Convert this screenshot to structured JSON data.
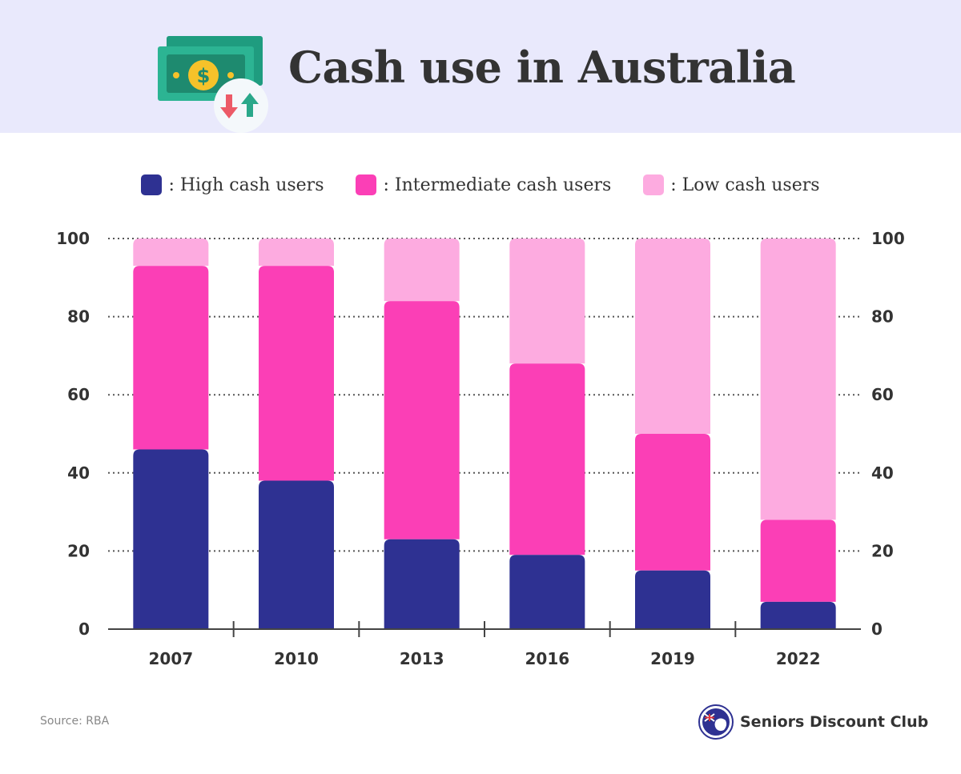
{
  "header": {
    "title": "Cash use in Australia",
    "icon": "money-exchange-icon"
  },
  "legend": [
    {
      "label": ": High cash users",
      "color": "#2e3192"
    },
    {
      "label": ": Intermediate cash users",
      "color": "#fb3fb6"
    },
    {
      "label": ": Low cash users",
      "color": "#fdabe0"
    }
  ],
  "chart_data": {
    "type": "bar",
    "stacked": true,
    "categories": [
      "2007",
      "2010",
      "2013",
      "2016",
      "2019",
      "2022"
    ],
    "series": [
      {
        "name": "High cash users",
        "color": "#2e3192",
        "values": [
          46,
          38,
          23,
          19,
          15,
          7
        ]
      },
      {
        "name": "Intermediate cash users",
        "color": "#fb3fb6",
        "values": [
          47,
          55,
          61,
          49,
          35,
          21
        ]
      },
      {
        "name": "Low cash users",
        "color": "#fdabe0",
        "values": [
          7,
          7,
          16,
          32,
          50,
          72
        ]
      }
    ],
    "ylim": [
      0,
      100
    ],
    "yticks": [
      0,
      20,
      40,
      60,
      80,
      100
    ],
    "y_axis_both_sides": true,
    "grid": "dotted horizontal",
    "legend_position": "top-center"
  },
  "footer": {
    "source": "Source: RBA",
    "brand": "Seniors Discount Club",
    "brand_icon": "australia-flag-badge-icon"
  }
}
